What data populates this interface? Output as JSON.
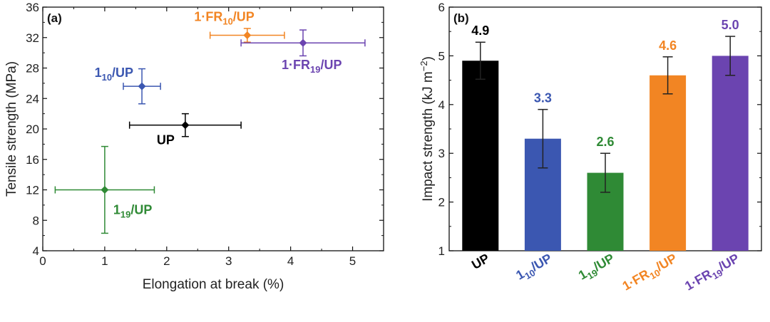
{
  "chart_data": [
    {
      "type": "scatter",
      "panel": "(a)",
      "xlabel": "Elongation at break (%)",
      "ylabel": "Tensile strength (MPa)",
      "xlim": [
        0,
        5.5
      ],
      "ylim": [
        4,
        36
      ],
      "xticks": [
        "0",
        "1",
        "2",
        "3",
        "4",
        "5"
      ],
      "yticks": [
        "4",
        "8",
        "12",
        "16",
        "20",
        "24",
        "28",
        "32",
        "36"
      ],
      "grid": false,
      "points": [
        {
          "name": "UP",
          "sub": "",
          "pre": "",
          "x": 2.3,
          "y": 20.5,
          "xerr": 0.9,
          "yerr": 1.5,
          "color": "#000000",
          "marker": "diamond"
        },
        {
          "name": "1",
          "sub": "10",
          "pre": "",
          "post": "/UP",
          "x": 1.6,
          "y": 25.6,
          "xerr": 0.3,
          "yerr": 2.3,
          "color": "#3b57b1",
          "marker": "diamond"
        },
        {
          "name": "1",
          "sub": "19",
          "pre": "",
          "post": "/UP",
          "x": 1.0,
          "y": 12.0,
          "xerr": 0.8,
          "yerr": 5.7,
          "color": "#2f8a35",
          "marker": "diamond"
        },
        {
          "name": "1·FR",
          "sub": "10",
          "pre": "",
          "post": "/UP",
          "x": 3.3,
          "y": 32.3,
          "xerr": 0.6,
          "yerr": 0.9,
          "color": "#f28523",
          "marker": "diamond"
        },
        {
          "name": "1·FR",
          "sub": "19",
          "pre": "",
          "post": "/UP",
          "x": 4.2,
          "y": 31.3,
          "xerr": 1.0,
          "yerr": 1.7,
          "color": "#6b44b0",
          "marker": "diamond"
        }
      ]
    },
    {
      "type": "bar",
      "panel": "(b)",
      "xlabel": "",
      "ylabel": "Impact strength (kJ m",
      "ylabel_sup": "−2",
      "ylabel_end": ")",
      "ylim": [
        1,
        6
      ],
      "yticks": [
        "1",
        "2",
        "3",
        "4",
        "5",
        "6"
      ],
      "grid": false,
      "categories": [
        {
          "main": "UP",
          "sub": "",
          "post": ""
        },
        {
          "main": "1",
          "sub": "10",
          "post": "/UP"
        },
        {
          "main": "1",
          "sub": "19",
          "post": "/UP"
        },
        {
          "main": "1·FR",
          "sub": "10",
          "post": "/UP"
        },
        {
          "main": "1·FR",
          "sub": "19",
          "post": "/UP"
        }
      ],
      "values": [
        4.9,
        3.3,
        2.6,
        4.6,
        5.0
      ],
      "value_labels": [
        "4.9",
        "3.3",
        "2.6",
        "4.6",
        "5.0"
      ],
      "errors": [
        0.38,
        0.6,
        0.4,
        0.38,
        0.4
      ],
      "colors": [
        "#000000",
        "#3b57b1",
        "#2f8a35",
        "#f28523",
        "#6b44b0"
      ]
    }
  ]
}
